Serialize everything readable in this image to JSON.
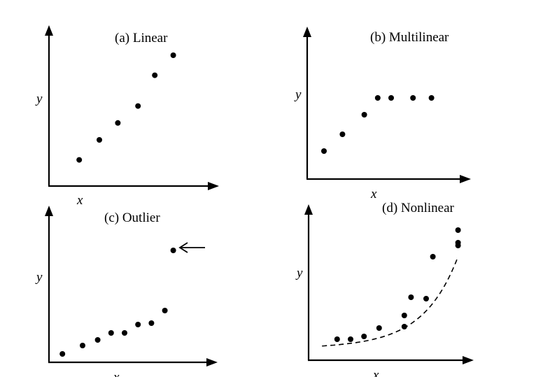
{
  "chart_data": [
    {
      "id": "a",
      "type": "scatter",
      "title": "(a) Linear",
      "xlabel": "x",
      "ylabel": "y",
      "xlim": [
        0,
        10
      ],
      "ylim": [
        0,
        10
      ],
      "x": [
        1.8,
        3.0,
        4.1,
        5.3,
        6.3,
        7.4
      ],
      "y": [
        1.7,
        3.0,
        4.1,
        5.2,
        7.2,
        8.5
      ]
    },
    {
      "id": "b",
      "type": "scatter",
      "title": "(b) Multilinear",
      "xlabel": "x",
      "ylabel": "y",
      "xlim": [
        0,
        10
      ],
      "ylim": [
        0,
        10
      ],
      "x": [
        1.0,
        2.1,
        3.4,
        4.2,
        5.0,
        6.3,
        7.4
      ],
      "y": [
        2.0,
        3.2,
        4.6,
        5.8,
        5.8,
        5.8,
        5.8
      ]
    },
    {
      "id": "c",
      "type": "scatter",
      "title": "(c) Outlier",
      "xlabel": "x",
      "ylabel": "y",
      "xlim": [
        0,
        10
      ],
      "ylim": [
        0,
        10
      ],
      "x": [
        0.8,
        2.0,
        2.9,
        3.7,
        4.5,
        5.3,
        6.1,
        6.9,
        7.4
      ],
      "y": [
        0.6,
        1.2,
        1.6,
        2.1,
        2.1,
        2.7,
        2.8,
        3.7,
        8.0
      ],
      "outlier_index": 8
    },
    {
      "id": "d",
      "type": "scatter",
      "title": "(d) Nonlinear",
      "xlabel": "x",
      "ylabel": "y",
      "xlim": [
        0,
        10
      ],
      "ylim": [
        0,
        10
      ],
      "x": [
        1.7,
        2.5,
        3.3,
        4.2,
        5.7,
        5.7,
        6.1,
        7.0,
        7.4,
        8.9,
        8.9,
        8.9
      ],
      "y": [
        1.5,
        1.5,
        1.7,
        2.3,
        2.4,
        3.2,
        4.5,
        4.4,
        7.4,
        8.4,
        8.2,
        9.3
      ],
      "trend": "dashed exponential curve"
    }
  ]
}
